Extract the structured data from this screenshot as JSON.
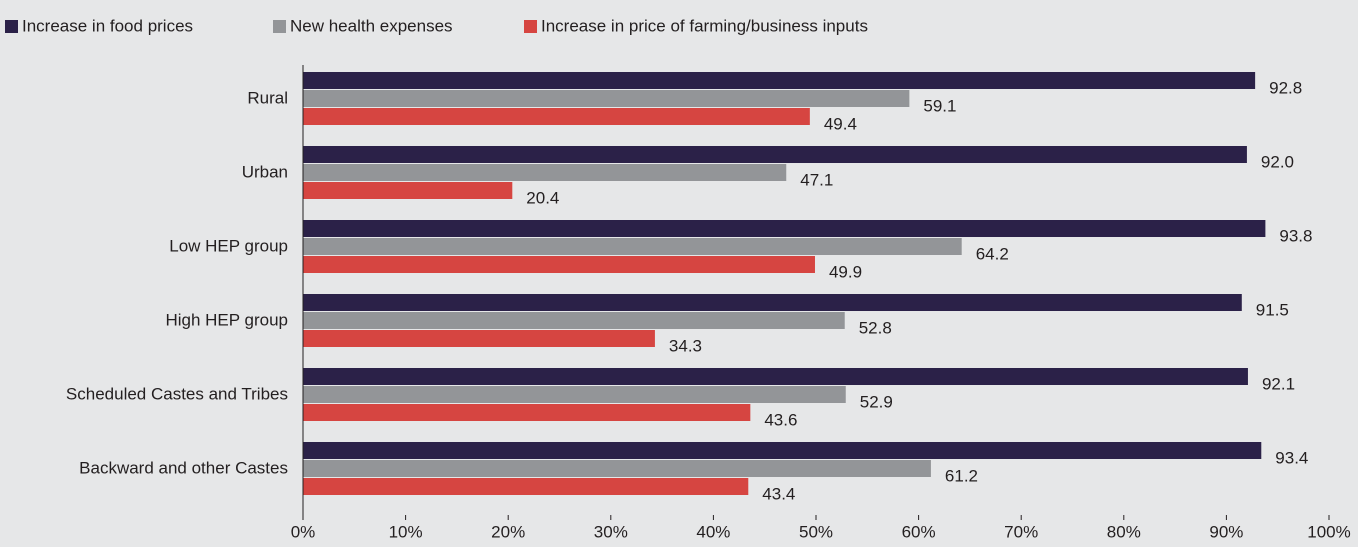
{
  "chart_data": {
    "type": "barh",
    "categories": [
      "Rural",
      "Urban",
      "Low HEP group",
      "High HEP group",
      "Scheduled Castes and Tribes",
      "Backward and other Castes"
    ],
    "series": [
      {
        "name": "Increase in food prices",
        "color": "#2b2148",
        "values": [
          92.8,
          92.0,
          93.8,
          91.5,
          92.1,
          93.4
        ],
        "value_labels": [
          "92.8",
          "92.0",
          "93.8",
          "91.5",
          "92.1",
          "93.4"
        ]
      },
      {
        "name": "New health expenses",
        "color": "#939598",
        "values": [
          59.1,
          47.1,
          64.2,
          52.8,
          52.9,
          61.2
        ],
        "value_labels": [
          "59.1",
          "47.1",
          "64.2",
          "52.8",
          "52.9",
          "61.2"
        ]
      },
      {
        "name": "Increase in price of farming/business inputs",
        "color": "#d64541",
        "values": [
          49.4,
          20.4,
          49.9,
          34.3,
          43.6,
          43.4
        ],
        "value_labels": [
          "49.4",
          "20.4",
          "49.9",
          "34.3",
          "43.6",
          "43.4"
        ]
      }
    ],
    "xlim": [
      0,
      100
    ],
    "xticks": [
      {
        "value": 0,
        "label": "0%"
      },
      {
        "value": 10,
        "label": "10%"
      },
      {
        "value": 20,
        "label": "20%"
      },
      {
        "value": 30,
        "label": "30%"
      },
      {
        "value": 40,
        "label": "40%"
      },
      {
        "value": 50,
        "label": "50%"
      },
      {
        "value": 60,
        "label": "60%"
      },
      {
        "value": 70,
        "label": "70%"
      },
      {
        "value": 80,
        "label": "80%"
      },
      {
        "value": 90,
        "label": "90%"
      },
      {
        "value": 100,
        "label": "100%"
      }
    ],
    "legend": "top-left"
  }
}
